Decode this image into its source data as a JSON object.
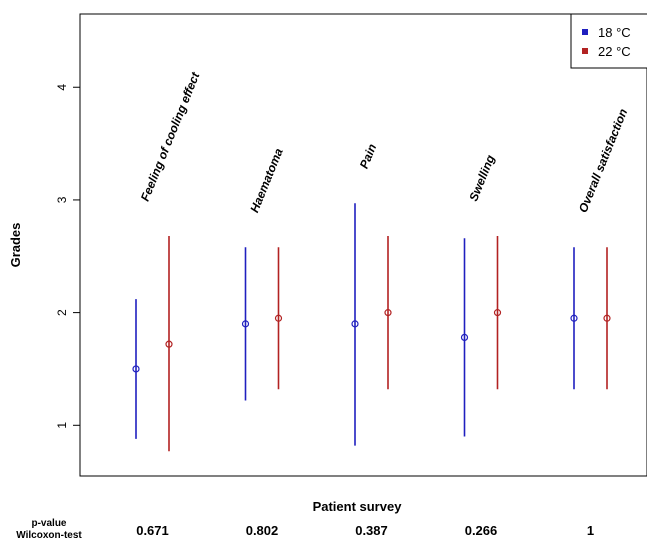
{
  "chart_data": {
    "type": "scatter",
    "xlabel": "Patient survey",
    "ylabel": "Grades",
    "ylim": [
      0.55,
      4.65
    ],
    "yticks": [
      1,
      2,
      3,
      4
    ],
    "grid": false,
    "legend": {
      "placement": "top-right",
      "entries": [
        {
          "name": "18 °C",
          "color": "#1f1fbf"
        },
        {
          "name": "22 °C",
          "color": "#b22222"
        }
      ]
    },
    "categories": [
      "Feeling of cooling effect",
      "Haematoma",
      "Pain",
      "Swelling",
      "Overall satisfaction"
    ],
    "series": [
      {
        "name": "18 °C",
        "color": "#1f1fbf",
        "mean": [
          1.5,
          1.9,
          1.9,
          1.78,
          1.95
        ],
        "low": [
          0.88,
          1.22,
          0.82,
          0.9,
          1.32
        ],
        "high": [
          2.12,
          2.58,
          2.97,
          2.66,
          2.58
        ]
      },
      {
        "name": "22 °C",
        "color": "#b22222",
        "mean": [
          1.72,
          1.95,
          2.0,
          2.0,
          1.95
        ],
        "low": [
          0.77,
          1.32,
          1.32,
          1.32,
          1.32
        ],
        "high": [
          2.68,
          2.58,
          2.68,
          2.68,
          2.58
        ]
      }
    ],
    "pvalue_label_line1": "p-value",
    "pvalue_label_line2": "Wilcoxon-test",
    "pvalues": [
      "0.671",
      "0.802",
      "0.387",
      "0.266",
      "1"
    ]
  }
}
